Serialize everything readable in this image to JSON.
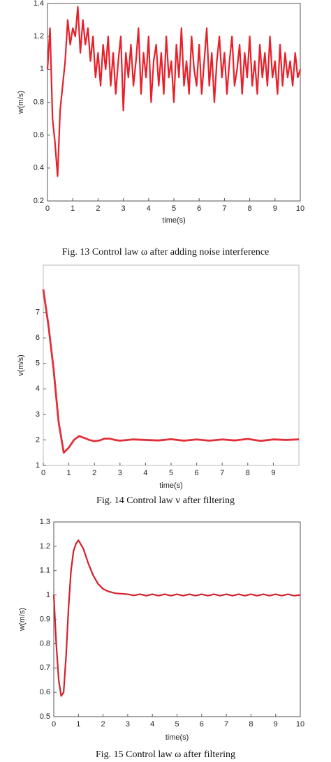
{
  "chart_data": [
    {
      "type": "line",
      "caption": "Fig. 13 Control law  ω  after adding noise interference",
      "xlabel": "time(s)",
      "ylabel": "w(m/s)",
      "xlim": [
        0,
        10
      ],
      "ylim": [
        0.2,
        1.4
      ],
      "xticks": [
        0,
        1,
        2,
        3,
        4,
        5,
        6,
        7,
        8,
        9,
        10
      ],
      "yticks": [
        0.2,
        0.4,
        0.6,
        0.8,
        1,
        1.2,
        1.4
      ],
      "series": [
        {
          "color": "#e8202a",
          "x": [
            0,
            0.1,
            0.2,
            0.3,
            0.4,
            0.5,
            0.6,
            0.7,
            0.8,
            0.9,
            1,
            1.1,
            1.2,
            1.3,
            1.4,
            1.5,
            1.6,
            1.7,
            1.8,
            1.9,
            2,
            2.1,
            2.2,
            2.3,
            2.4,
            2.5,
            2.6,
            2.7,
            2.8,
            2.9,
            3,
            3.1,
            3.2,
            3.3,
            3.4,
            3.5,
            3.6,
            3.7,
            3.8,
            3.9,
            4,
            4.1,
            4.2,
            4.3,
            4.4,
            4.5,
            4.6,
            4.7,
            4.8,
            4.9,
            5,
            5.1,
            5.2,
            5.3,
            5.4,
            5.5,
            5.6,
            5.7,
            5.8,
            5.9,
            6,
            6.1,
            6.2,
            6.3,
            6.4,
            6.5,
            6.6,
            6.7,
            6.8,
            6.9,
            7,
            7.1,
            7.2,
            7.3,
            7.4,
            7.5,
            7.6,
            7.7,
            7.8,
            7.9,
            8,
            8.1,
            8.2,
            8.3,
            8.4,
            8.5,
            8.6,
            8.7,
            8.8,
            8.9,
            9,
            9.1,
            9.2,
            9.3,
            9.4,
            9.5,
            9.6,
            9.7,
            9.8,
            9.9,
            10
          ],
          "values": [
            1.0,
            1.25,
            0.7,
            0.55,
            0.35,
            0.75,
            0.9,
            1.05,
            1.3,
            1.15,
            1.25,
            1.2,
            1.38,
            1.1,
            1.3,
            1.15,
            1.25,
            1.05,
            1.2,
            0.95,
            1.1,
            0.9,
            1.15,
            1.0,
            1.2,
            0.9,
            1.1,
            0.85,
            1.05,
            1.2,
            0.75,
            1.1,
            0.95,
            1.15,
            0.9,
            1.05,
            1.25,
            0.85,
            1.1,
            0.95,
            1.2,
            0.8,
            1.05,
            1.15,
            0.9,
            1.1,
            0.85,
            1.2,
            0.95,
            1.05,
            0.8,
            1.15,
            0.95,
            1.25,
            0.9,
            1.05,
            0.85,
            1.2,
            1.0,
            0.9,
            1.15,
            0.85,
            1.05,
            1.25,
            0.9,
            1.1,
            0.8,
            1.05,
            1.2,
            0.95,
            1.1,
            0.85,
            1.05,
            1.2,
            0.9,
            1.0,
            1.15,
            0.85,
            1.1,
            0.95,
            1.2,
            0.9,
            1.05,
            0.85,
            1.15,
            0.95,
            1.1,
            0.9,
            1.2,
            0.95,
            1.05,
            0.85,
            1.15,
            0.9,
            1.1,
            0.95,
            1.05,
            0.9,
            1.1,
            0.95,
            1.0
          ]
        }
      ]
    },
    {
      "type": "line",
      "caption": "Fig. 14 Control law  v  after filtering",
      "xlabel": "time(s)",
      "ylabel": "v(m/s)",
      "xlim": [
        0,
        10
      ],
      "ylim": [
        1,
        8.85
      ],
      "xticks": [
        0,
        1,
        2,
        3,
        4,
        5,
        6,
        7,
        8,
        9
      ],
      "yticks": [
        1,
        2,
        3,
        4,
        5,
        6,
        7
      ],
      "series": [
        {
          "color": "#e0303a",
          "x": [
            0,
            0.2,
            0.4,
            0.6,
            0.8,
            1,
            1.2,
            1.4,
            1.6,
            1.8,
            2,
            2.2,
            2.4,
            2.6,
            2.8,
            3,
            3.5,
            4,
            4.5,
            5,
            5.5,
            6,
            6.5,
            7,
            7.5,
            8,
            8.5,
            9,
            9.5,
            10
          ],
          "values": [
            7.9,
            6.5,
            4.8,
            2.7,
            1.5,
            1.7,
            2.0,
            2.15,
            2.08,
            2.0,
            1.95,
            1.98,
            2.05,
            2.05,
            2.0,
            1.97,
            2.02,
            2.0,
            1.98,
            2.03,
            1.97,
            2.02,
            1.97,
            2.02,
            1.98,
            2.04,
            1.96,
            2.02,
            2.0,
            2.02
          ]
        }
      ]
    },
    {
      "type": "line",
      "caption": "Fig. 15 Control law  ω  after filtering",
      "xlabel": "time(s)",
      "ylabel": "w(m/s)",
      "xlim": [
        0,
        10
      ],
      "ylim": [
        0.5,
        1.3
      ],
      "xticks": [
        0,
        1,
        2,
        3,
        4,
        5,
        6,
        7,
        8,
        9,
        10
      ],
      "yticks": [
        0.5,
        0.6,
        0.7,
        0.8,
        0.9,
        1,
        1.1,
        1.2,
        1.3
      ],
      "series": [
        {
          "color": "#d4202a",
          "x": [
            0,
            0.1,
            0.2,
            0.3,
            0.4,
            0.5,
            0.6,
            0.7,
            0.8,
            0.9,
            1,
            1.2,
            1.4,
            1.6,
            1.8,
            2,
            2.2,
            2.5,
            3,
            3.25,
            3.5,
            3.75,
            4,
            4.25,
            4.5,
            4.75,
            5,
            5.25,
            5.5,
            5.75,
            6,
            6.25,
            6.5,
            6.75,
            7,
            7.25,
            7.5,
            7.75,
            8,
            8.25,
            8.5,
            8.75,
            9,
            9.25,
            9.5,
            9.75,
            10
          ],
          "values": [
            1.0,
            0.8,
            0.65,
            0.585,
            0.6,
            0.75,
            0.95,
            1.1,
            1.18,
            1.21,
            1.225,
            1.19,
            1.13,
            1.08,
            1.045,
            1.025,
            1.015,
            1.007,
            1.003,
            0.998,
            1.003,
            0.997,
            1.003,
            0.997,
            1.003,
            0.997,
            1.003,
            0.997,
            1.003,
            0.997,
            1.003,
            0.997,
            1.003,
            0.997,
            1.003,
            0.997,
            1.003,
            0.997,
            1.003,
            0.997,
            1.003,
            0.997,
            1.003,
            0.997,
            1.003,
            0.997,
            1.0
          ]
        }
      ]
    }
  ]
}
